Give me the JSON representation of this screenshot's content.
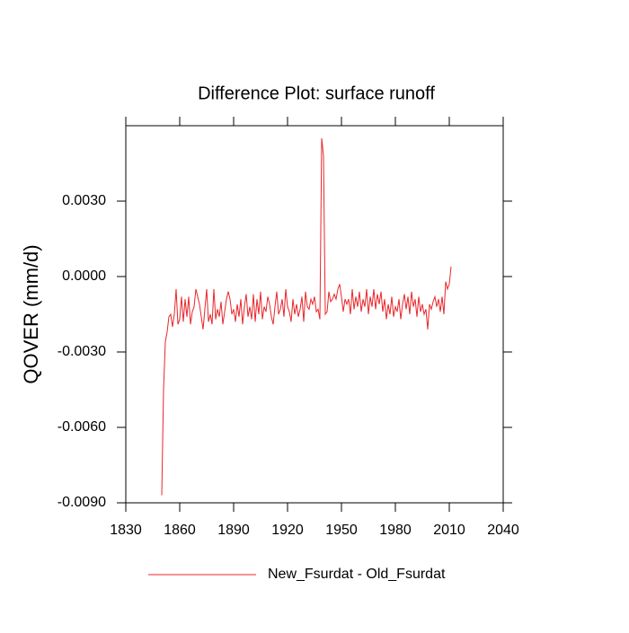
{
  "chart_data": {
    "type": "line",
    "title": "Difference Plot: surface runoff",
    "y_label": "QOVER  (mm/d)",
    "x": [
      1850,
      1851,
      1852,
      1853,
      1854,
      1855,
      1856,
      1857,
      1858,
      1859,
      1860,
      1861,
      1862,
      1863,
      1864,
      1865,
      1866,
      1867,
      1868,
      1869,
      1870,
      1871,
      1872,
      1873,
      1874,
      1875,
      1876,
      1877,
      1878,
      1879,
      1880,
      1881,
      1882,
      1883,
      1884,
      1885,
      1886,
      1887,
      1888,
      1889,
      1890,
      1891,
      1892,
      1893,
      1894,
      1895,
      1896,
      1897,
      1898,
      1899,
      1900,
      1901,
      1902,
      1903,
      1904,
      1905,
      1906,
      1907,
      1908,
      1909,
      1910,
      1911,
      1912,
      1913,
      1914,
      1915,
      1916,
      1917,
      1918,
      1919,
      1920,
      1921,
      1922,
      1923,
      1924,
      1925,
      1926,
      1927,
      1928,
      1929,
      1930,
      1931,
      1932,
      1933,
      1934,
      1935,
      1936,
      1937,
      1938,
      1939,
      1940,
      1941,
      1942,
      1943,
      1944,
      1945,
      1946,
      1947,
      1948,
      1949,
      1950,
      1951,
      1952,
      1953,
      1954,
      1955,
      1956,
      1957,
      1958,
      1959,
      1960,
      1961,
      1962,
      1963,
      1964,
      1965,
      1966,
      1967,
      1968,
      1969,
      1970,
      1971,
      1972,
      1973,
      1974,
      1975,
      1976,
      1977,
      1978,
      1979,
      1980,
      1981,
      1982,
      1983,
      1984,
      1985,
      1986,
      1987,
      1988,
      1989,
      1990,
      1991,
      1992,
      1993,
      1994,
      1995,
      1996,
      1997,
      1998,
      1999,
      2000,
      2001,
      2002,
      2003,
      2004,
      2005,
      2006,
      2007,
      2008,
      2009,
      2010,
      2011
    ],
    "series": [
      {
        "name": "New_Fsurdat - Old_Fsurdat",
        "color": "#e8262b",
        "values": [
          -0.0087,
          -0.0045,
          -0.0026,
          -0.0022,
          -0.0016,
          -0.0015,
          -0.002,
          -0.0015,
          -0.0005,
          -0.0019,
          -0.0017,
          -0.0008,
          -0.0018,
          -0.0009,
          -0.0016,
          -0.0008,
          -0.0019,
          -0.0014,
          -0.0012,
          -0.0005,
          -0.0008,
          -0.0011,
          -0.0016,
          -0.0021,
          -0.0013,
          -0.0005,
          -0.0018,
          -0.0015,
          -0.0019,
          -0.0005,
          -0.0017,
          -0.0013,
          -0.0016,
          -0.001,
          -0.0019,
          -0.0014,
          -0.0009,
          -0.0006,
          -0.0009,
          -0.0015,
          -0.0013,
          -0.0018,
          -0.0011,
          -0.0016,
          -0.0009,
          -0.0019,
          -0.0012,
          -0.0007,
          -0.0016,
          -0.0012,
          -0.0017,
          -0.0007,
          -0.0018,
          -0.0009,
          -0.0015,
          -0.0006,
          -0.0017,
          -0.0012,
          -0.0014,
          -0.0008,
          -0.0011,
          -0.0016,
          -0.0019,
          -0.0012,
          -0.0006,
          -0.0015,
          -0.0013,
          -0.0009,
          -0.0016,
          -0.0005,
          -0.0012,
          -0.0014,
          -0.0018,
          -0.0009,
          -0.0015,
          -0.0011,
          -0.0016,
          -0.0013,
          -0.0008,
          -0.0018,
          -0.0006,
          -0.0012,
          -0.0013,
          -0.0009,
          -0.0011,
          -0.0008,
          -0.0014,
          -0.0013,
          -0.0017,
          0.0055,
          0.0048,
          -0.0015,
          -0.0014,
          -0.0006,
          -0.001,
          -0.0009,
          -0.0007,
          -0.0009,
          -0.0005,
          -0.0003,
          -0.0008,
          -0.0014,
          -0.0009,
          -0.0011,
          -0.0009,
          -0.0015,
          -0.0005,
          -0.0013,
          -0.0008,
          -0.0012,
          -0.0006,
          -0.0014,
          -0.0009,
          -0.0012,
          -0.0005,
          -0.0015,
          -0.0008,
          -0.0012,
          -0.0005,
          -0.0013,
          -0.0007,
          -0.0011,
          -0.0006,
          -0.0014,
          -0.0009,
          -0.0017,
          -0.0011,
          -0.0015,
          -0.0008,
          -0.0016,
          -0.0012,
          -0.0014,
          -0.0009,
          -0.0017,
          -0.0011,
          -0.0007,
          -0.0013,
          -0.0008,
          -0.0015,
          -0.0006,
          -0.0012,
          -0.0009,
          -0.0016,
          -0.0008,
          -0.0014,
          -0.0011,
          -0.0015,
          -0.0013,
          -0.0021,
          -0.0011,
          -0.0013,
          -0.001,
          -0.0008,
          -0.0012,
          -0.0009,
          -0.0014,
          -0.0008,
          -0.0015,
          -0.0002,
          -0.0005,
          -0.0003,
          0.0004
        ]
      }
    ],
    "xlim": [
      1830,
      2040
    ],
    "xticks": [
      1830,
      1860,
      1890,
      1920,
      1950,
      1980,
      2010,
      2040
    ],
    "ylim": [
      -0.009,
      0.006
    ],
    "yticks": [
      {
        "value": -0.009,
        "label": "-0.0090"
      },
      {
        "value": -0.006,
        "label": "-0.0060"
      },
      {
        "value": -0.003,
        "label": "-0.0030"
      },
      {
        "value": 0,
        "label": "0.0000"
      },
      {
        "value": 0.003,
        "label": "0.0030"
      }
    ]
  }
}
